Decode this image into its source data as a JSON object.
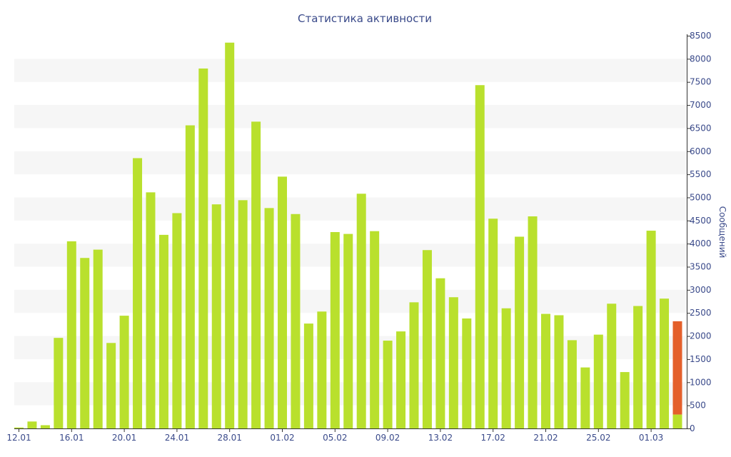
{
  "chart_data": {
    "type": "bar",
    "title": "Статистика активности",
    "ylabel": "Сообщений",
    "ylim": [
      0,
      8500
    ],
    "y_axis_side": "right",
    "y_ticks": [
      0,
      500,
      1000,
      1500,
      2000,
      2500,
      3000,
      3500,
      4000,
      4500,
      5000,
      5500,
      6000,
      6500,
      7000,
      7500,
      8000,
      8500
    ],
    "x_tick_labels": [
      {
        "index": 0,
        "label": "12.01"
      },
      {
        "index": 4,
        "label": "16.01"
      },
      {
        "index": 8,
        "label": "20.01"
      },
      {
        "index": 12,
        "label": "24.01"
      },
      {
        "index": 16,
        "label": "28.01"
      },
      {
        "index": 20,
        "label": "01.02"
      },
      {
        "index": 24,
        "label": "05.02"
      },
      {
        "index": 28,
        "label": "09.02"
      },
      {
        "index": 32,
        "label": "13.02"
      },
      {
        "index": 36,
        "label": "17.02"
      },
      {
        "index": 40,
        "label": "21.02"
      },
      {
        "index": 44,
        "label": "25.02"
      },
      {
        "index": 48,
        "label": "01.03"
      }
    ],
    "categories": [
      "12.01",
      "13.01",
      "14.01",
      "15.01",
      "16.01",
      "17.01",
      "18.01",
      "19.01",
      "20.01",
      "21.01",
      "22.01",
      "23.01",
      "24.01",
      "25.01",
      "26.01",
      "27.01",
      "28.01",
      "29.01",
      "30.01",
      "31.01",
      "01.02",
      "02.02",
      "03.02",
      "04.02",
      "05.02",
      "06.02",
      "07.02",
      "08.02",
      "09.02",
      "10.02",
      "11.02",
      "12.02",
      "13.02",
      "14.02",
      "15.02",
      "16.02",
      "17.02",
      "18.02",
      "19.02",
      "20.02",
      "21.02",
      "22.02",
      "23.02",
      "24.02",
      "25.02",
      "26.02",
      "27.02",
      "28.02",
      "01.03",
      "02.03",
      "03.03"
    ],
    "values": [
      20,
      150,
      70,
      1960,
      4050,
      3690,
      3870,
      1850,
      2440,
      5850,
      5110,
      4190,
      4660,
      6560,
      7790,
      4850,
      8350,
      4940,
      6640,
      4770,
      5450,
      4640,
      2270,
      2530,
      4250,
      4210,
      5080,
      4270,
      1900,
      2100,
      2730,
      3860,
      3250,
      2840,
      2380,
      7430,
      4540,
      2600,
      4150,
      4590,
      2480,
      2450,
      1910,
      1320,
      2030,
      2700,
      1220,
      2650,
      4280,
      2810,
      2320
    ],
    "current_split": {
      "index": 50,
      "base": 300,
      "total": 2320
    },
    "grid": "alternating horizontal bands",
    "colors": {
      "bar": "#b9e02d",
      "current": "#e4602b",
      "band": "#f6f6f6",
      "text": "#3a4a8a",
      "axis": "#333333"
    }
  }
}
